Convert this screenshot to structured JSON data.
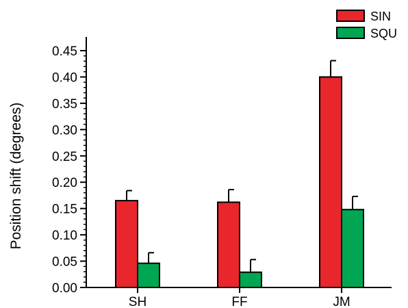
{
  "chart_data": {
    "type": "bar",
    "categories": [
      "SH",
      "FF",
      "JM"
    ],
    "series": [
      {
        "name": "SIN",
        "color": "#e8262b",
        "values": [
          0.165,
          0.162,
          0.4
        ],
        "errors": [
          0.019,
          0.024,
          0.031
        ]
      },
      {
        "name": "SQU",
        "color": "#00a651",
        "values": [
          0.046,
          0.029,
          0.148
        ],
        "errors": [
          0.02,
          0.024,
          0.025
        ]
      }
    ],
    "ylabel": "Position shift (degrees)",
    "xlabel": "",
    "ylim": [
      0,
      0.45
    ],
    "yticks": [
      "0.00",
      "0.05",
      "0.10",
      "0.15",
      "0.20",
      "0.25",
      "0.30",
      "0.35",
      "0.40",
      "0.45"
    ],
    "ytick_values": [
      0,
      0.05,
      0.1,
      0.15,
      0.2,
      0.25,
      0.3,
      0.35,
      0.4,
      0.45
    ],
    "minor_ticks": true,
    "legend_position": "top-right",
    "grid": false
  }
}
